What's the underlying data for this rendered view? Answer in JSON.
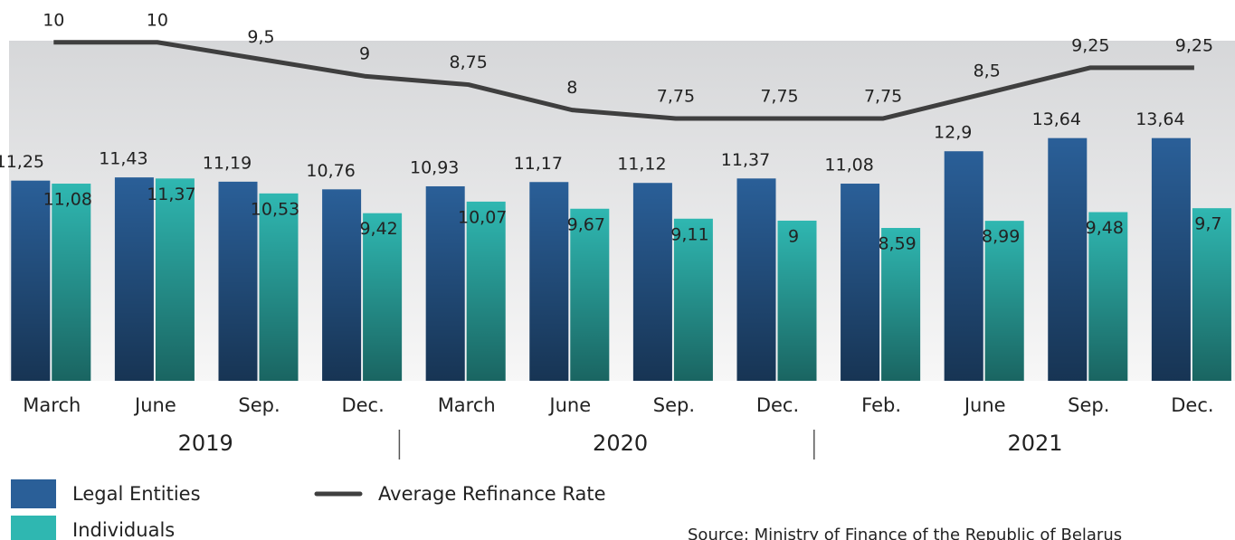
{
  "chart_data": {
    "type": "bar",
    "categories": [
      "March",
      "June",
      "Sep.",
      "Dec.",
      "March",
      "June",
      "Sep.",
      "Dec.",
      "Feb.",
      "June",
      "Sep.",
      "Dec."
    ],
    "category_groups": [
      "2019",
      "2020",
      "2021"
    ],
    "series": [
      {
        "name": "Legal Entities",
        "type": "bar",
        "color": "#2a5f98",
        "values": [
          11.25,
          11.43,
          11.19,
          10.76,
          10.93,
          11.17,
          11.12,
          11.37,
          11.08,
          12.9,
          13.64,
          13.64
        ],
        "value_labels": [
          "11,25",
          "11,43",
          "11,19",
          "10,76",
          "10,93",
          "11,17",
          "11,12",
          "11,37",
          "11,08",
          "12,9",
          "13,64",
          "13,64"
        ]
      },
      {
        "name": "Individuals",
        "type": "bar",
        "color": "#2fb7b1",
        "values": [
          11.08,
          11.37,
          10.53,
          9.42,
          10.07,
          9.67,
          9.11,
          9,
          8.59,
          8.99,
          9.48,
          9.7
        ],
        "value_labels": [
          "11,08",
          "11,37",
          "10,53",
          "9,42",
          "10,07",
          "9,67",
          "9,11",
          "9",
          "8,59",
          "8,99",
          "9,48",
          "9,7"
        ]
      },
      {
        "name": "Average Refinance Rate",
        "type": "line",
        "axis": "y2",
        "color": "#3f3f3f",
        "values": [
          10,
          10,
          9.5,
          9,
          8.75,
          8,
          7.75,
          7.75,
          7.75,
          8.5,
          9.25,
          9.25
        ],
        "value_labels": [
          "10",
          "10",
          "9,5",
          "9",
          "8,75",
          "8",
          "7,75",
          "7,75",
          "7,75",
          "8,5",
          "9,25",
          "9,25"
        ]
      }
    ],
    "ylim": [
      0,
      21.4
    ],
    "y2lim": [
      0,
      11.25
    ],
    "source": "Source: Ministry of Finance of the Republic of Belarus"
  }
}
